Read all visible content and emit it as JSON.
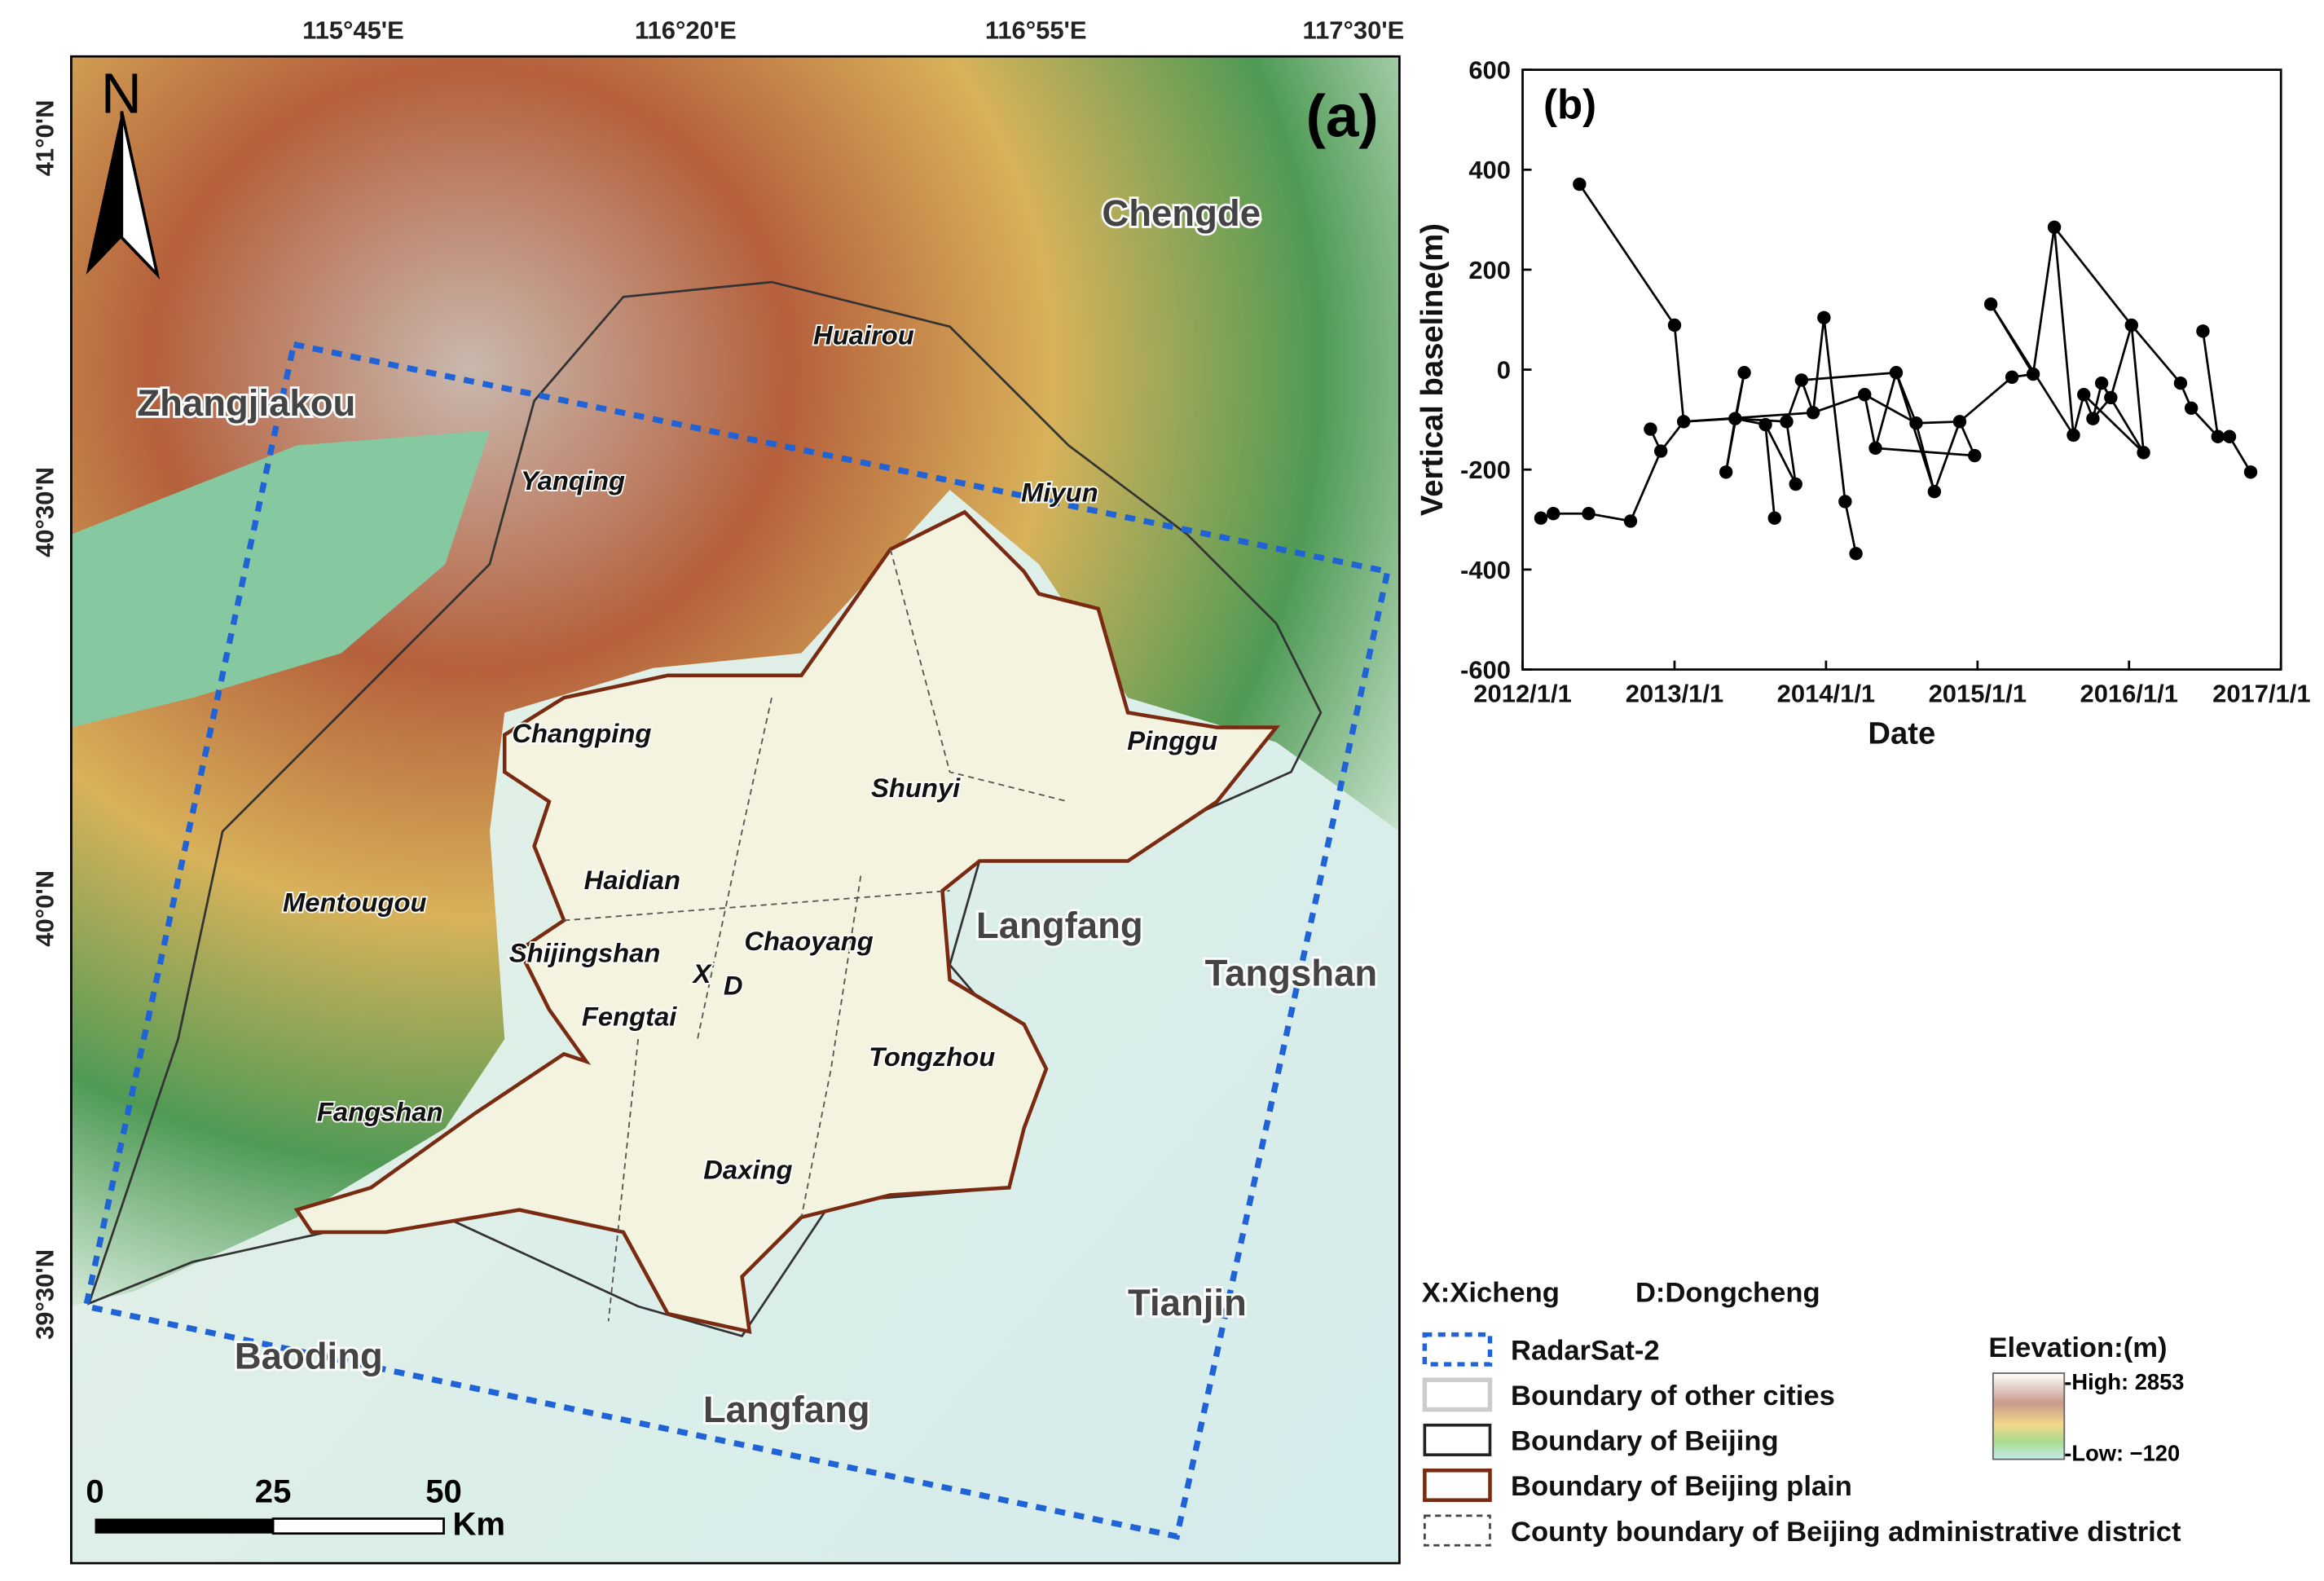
{
  "map": {
    "panel_label": "(a)",
    "north": "N",
    "lon_ticks": [
      "115°45'E",
      "116°20'E",
      "116°55'E",
      "117°30'E"
    ],
    "lat_ticks": [
      "41°0'N",
      "40°30'N",
      "40°0'N",
      "39°30'N"
    ],
    "cities": [
      "Chengde",
      "Zhangjiakou",
      "Langfang",
      "Tangshan",
      "Tianjin",
      "Baoding",
      "Langfang"
    ],
    "districts": [
      "Huairou",
      "Yanqing",
      "Miyun",
      "Changping",
      "Pinggu",
      "Shunyi",
      "Haidian",
      "Mentougou",
      "Chaoyang",
      "Shijingshan",
      "Fengtai",
      "Tongzhou",
      "Fangshan",
      "Daxing"
    ],
    "markers": [
      "X",
      "D"
    ],
    "scale_bar": {
      "ticks": [
        "0",
        "25",
        "50"
      ],
      "unit": "Km"
    }
  },
  "legend": {
    "abbreviations": [
      "X:Xicheng",
      "D:Dongcheng"
    ],
    "items": [
      "RadarSat-2",
      "Boundary of other cities",
      "Boundary of Beijing",
      "Boundary of Beijing plain",
      "County boundary of Beijing administrative district"
    ],
    "elevation": {
      "title": "Elevation:(m)",
      "high": "-High: 2853",
      "low": "-Low: −120"
    }
  },
  "chart_data": {
    "type": "network",
    "panel_label": "(b)",
    "x_label": "Date",
    "y_label": "Vertical baseline(m)",
    "color": "#000000",
    "x": [
      "2012-02-14",
      "2012-03-15",
      "2012-06-08",
      "2012-05-17",
      "2012-09-17",
      "2012-11-04",
      "2012-11-29",
      "2013-01-01",
      "2013-01-23",
      "2013-05-05",
      "2013-05-27",
      "2013-06-18",
      "2013-08-08",
      "2013-08-30",
      "2013-09-28",
      "2013-10-20",
      "2013-11-03",
      "2013-12-01",
      "2013-12-27",
      "2014-02-16",
      "2014-03-14",
      "2014-04-04",
      "2014-04-30",
      "2014-06-19",
      "2014-08-06",
      "2014-09-19",
      "2014-11-19",
      "2014-12-25",
      "2015-03-25",
      "2015-02-02",
      "2015-05-15",
      "2015-07-05",
      "2015-08-20",
      "2015-09-14",
      "2015-10-06",
      "2015-10-27",
      "2015-11-18",
      "2016-01-07",
      "2016-02-05",
      "2016-05-04",
      "2016-05-30",
      "2016-06-27",
      "2016-08-02",
      "2016-08-30",
      "2016-10-20"
    ],
    "values": [
      -297,
      -288,
      -288,
      371,
      -303,
      -119,
      -163,
      89,
      -104,
      -205,
      -98,
      -6,
      -110,
      -297,
      -104,
      -229,
      -21,
      -86,
      104,
      -264,
      -368,
      -50,
      -157,
      -6,
      -107,
      -244,
      -104,
      -172,
      -15,
      131,
      -9,
      285,
      -131,
      -50,
      -98,
      -27,
      -56,
      89,
      -166,
      -27,
      -77,
      77,
      -134,
      -134,
      -205
    ],
    "links": [
      [
        0,
        1
      ],
      [
        1,
        2
      ],
      [
        2,
        4
      ],
      [
        4,
        6
      ],
      [
        5,
        6
      ],
      [
        6,
        8
      ],
      [
        3,
        7
      ],
      [
        7,
        8
      ],
      [
        8,
        10
      ],
      [
        8,
        17
      ],
      [
        10,
        11
      ],
      [
        10,
        9
      ],
      [
        9,
        11
      ],
      [
        10,
        12
      ],
      [
        10,
        14
      ],
      [
        12,
        13
      ],
      [
        12,
        15
      ],
      [
        14,
        15
      ],
      [
        14,
        16
      ],
      [
        16,
        17
      ],
      [
        16,
        23
      ],
      [
        17,
        21
      ],
      [
        17,
        18
      ],
      [
        18,
        19
      ],
      [
        19,
        20
      ],
      [
        21,
        22
      ],
      [
        22,
        23
      ],
      [
        21,
        24
      ],
      [
        23,
        24
      ],
      [
        23,
        25
      ],
      [
        24,
        25
      ],
      [
        24,
        26
      ],
      [
        25,
        26
      ],
      [
        22,
        27
      ],
      [
        26,
        27
      ],
      [
        26,
        28
      ],
      [
        28,
        30
      ],
      [
        29,
        30
      ],
      [
        29,
        32
      ],
      [
        30,
        31
      ],
      [
        31,
        32
      ],
      [
        31,
        37
      ],
      [
        32,
        33
      ],
      [
        33,
        34
      ],
      [
        34,
        35
      ],
      [
        35,
        36
      ],
      [
        36,
        37
      ],
      [
        33,
        38
      ],
      [
        37,
        38
      ],
      [
        37,
        39
      ],
      [
        39,
        40
      ],
      [
        40,
        42
      ],
      [
        41,
        42
      ],
      [
        42,
        43
      ],
      [
        43,
        44
      ],
      [
        34,
        36
      ],
      [
        35,
        38
      ]
    ],
    "xlim": [
      "2012-01-01",
      "2017-01-01"
    ],
    "xticks": [
      {
        "value": "2012-01-01",
        "label": "2012/1/1"
      },
      {
        "value": "2013-01-01",
        "label": "2013/1/1"
      },
      {
        "value": "2014-01-01",
        "label": "2014/1/1"
      },
      {
        "value": "2015-01-01",
        "label": "2015/1/1"
      },
      {
        "value": "2016-01-01",
        "label": "2016/1/1"
      },
      {
        "value": "2017-01-01",
        "label": "2017/1/1"
      }
    ],
    "ylim": [
      -600,
      600
    ],
    "yticks": [
      -600,
      -400,
      -200,
      0,
      200,
      400,
      600
    ]
  }
}
